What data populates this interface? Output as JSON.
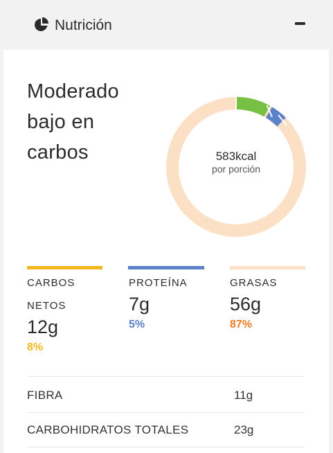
{
  "header": {
    "title": "Nutrición",
    "icon": "pie-chart-icon",
    "collapse_icon": "minus-icon"
  },
  "summary": {
    "headline": "Moderado bajo en carbos"
  },
  "calories": {
    "value": "583kcal",
    "label": "por porción"
  },
  "macros": [
    {
      "label_line1": "CARBOS",
      "label_line2": "NETOS",
      "value": "12g",
      "percent": "8%",
      "color": "#f2b91f",
      "pct_color": "#f2b91f"
    },
    {
      "label_line1": "PROTEÍNA",
      "value": "7g",
      "percent": "5%",
      "color": "#5b82c8",
      "pct_color": "#5b82c8"
    },
    {
      "label_line1": "GRASAS",
      "value": "56g",
      "percent": "87%",
      "color": "#fbe0c5",
      "pct_color": "#ef7a24"
    }
  ],
  "donut": {
    "net_carbs_color": "#78c043",
    "protein_color": "#5b82c8",
    "fat_color": "#fbe0c5"
  },
  "details": [
    {
      "label": "FIBRA",
      "value": "11g"
    },
    {
      "label": "CARBOHIDRATOS TOTALES",
      "value": "23g"
    }
  ]
}
